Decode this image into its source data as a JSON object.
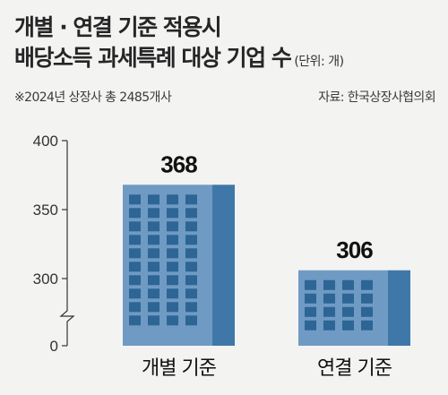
{
  "title_line1": "개별 · 연결 기준 적용시",
  "title_line2": "배당소득 과세특례 대상 기업 수",
  "unit": "(단위: 개)",
  "note": "※2024년 상장사 총 2485개사",
  "source": "자료: 한국상장사협의회",
  "colors": {
    "building_face": "#6f9ac4",
    "building_side": "#3f78a8",
    "window": "#2d6594",
    "axis": "#333333"
  },
  "chart_data": {
    "type": "bar",
    "categories": [
      "개별 기준",
      "연결 기준"
    ],
    "values": [
      368,
      306
    ],
    "value_labels": [
      "368",
      "306"
    ],
    "yticks": [
      "0",
      "300",
      "350",
      "400"
    ],
    "ylim": [
      0,
      400
    ],
    "axis_break": "between 0 and 300",
    "xlabel": "",
    "ylabel": "",
    "grid": false
  }
}
